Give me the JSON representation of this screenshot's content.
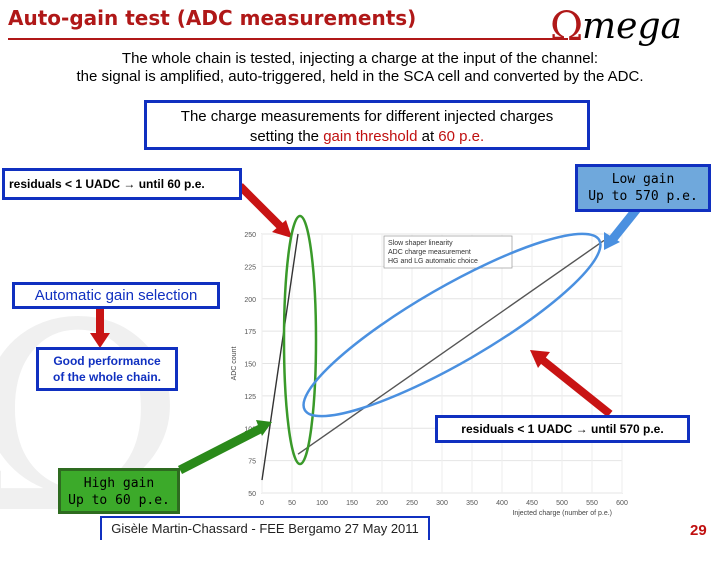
{
  "header": {
    "title": "Auto-gain test (ADC measurements)",
    "logo_text": "Ωmega"
  },
  "intro": {
    "line1": "The whole chain is tested, injecting a charge at the input of the channel:",
    "line2": "the signal is amplified, auto-triggered, held in the SCA cell and converted by the ADC."
  },
  "callout": {
    "line1": "The charge measurements for different injected charges",
    "line2_pre": "setting the ",
    "line2_highlight": "gain threshold",
    "line2_mid": " at ",
    "line2_value": "60 p.e."
  },
  "labels": {
    "residuals_hg": "residuals < 1 UADC → until 60 p.e.",
    "low_gain_1": "Low gain",
    "low_gain_2": "Up to 570 p.e.",
    "auto_gain": "Automatic gain selection",
    "good_perf_1": "Good performance",
    "good_perf_2": "of the whole chain.",
    "residuals_lg": "residuals < 1 UADC → until 570 p.e.",
    "high_gain_1": "High gain",
    "high_gain_2": "Up to 60 p.e."
  },
  "footer": {
    "text": "Gisèle Martin-Chassard  - FEE  Bergamo 27 May 2011",
    "page_number": "29"
  },
  "colors": {
    "title": "#b01818",
    "box_border": "#1030c0",
    "low_gain_fill": "#6fa8dc",
    "high_gain_fill": "#3caa2a",
    "arrow_red": "#c81414",
    "ellipse_green": "#3a9a2a",
    "ellipse_blue": "#4a90e0"
  },
  "chart_data": {
    "type": "line",
    "xlabel": "Injected charge (number of p.e.)",
    "ylabel": "ADC count",
    "xlim": [
      0,
      600
    ],
    "ylim": [
      50,
      250
    ],
    "x_ticks": [
      "0",
      "50",
      "100",
      "150",
      "200",
      "250",
      "300",
      "350",
      "400",
      "450",
      "500",
      "550",
      "600"
    ],
    "y_ticks": [
      "50",
      "75",
      "100",
      "125",
      "150",
      "175",
      "200",
      "225",
      "250"
    ],
    "legend": [
      "Slow shaper linearity",
      "ADC charge measurement",
      "HG and LG automatic choice"
    ],
    "legend_position": "top-left",
    "series": [
      {
        "name": "HG",
        "x": [
          0,
          60
        ],
        "y": [
          60,
          250
        ]
      },
      {
        "name": "LG",
        "x": [
          60,
          570
        ],
        "y": [
          80,
          245
        ]
      }
    ]
  }
}
